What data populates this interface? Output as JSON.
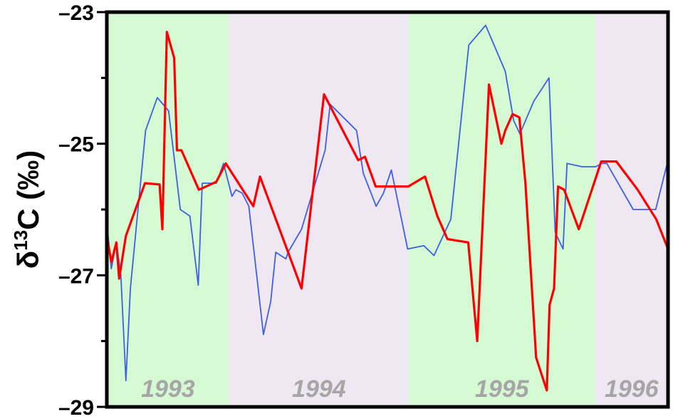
{
  "chart_data": {
    "type": "line",
    "ylabel_base": "δ",
    "ylabel_sup": "13",
    "ylabel_rest": "C (‰)",
    "ylim": [
      -29,
      -23
    ],
    "y_ticks": [
      -23,
      -25,
      -27,
      -29
    ],
    "y_tick_labels": [
      "–23",
      "–25",
      "–27",
      "–29"
    ],
    "xlim": [
      0,
      100
    ],
    "grid": false,
    "legend": "none",
    "year_bands": [
      {
        "label": "1993",
        "start": 0,
        "end": 21.8,
        "color": "#d5f9d3"
      },
      {
        "label": "1994",
        "start": 21.8,
        "end": 53.8,
        "color": "#efe7f2"
      },
      {
        "label": "1995",
        "start": 53.8,
        "end": 87.0,
        "color": "#d5f9d3"
      },
      {
        "label": "1996",
        "start": 87.0,
        "end": 100,
        "color": "#efe7f2"
      }
    ],
    "series": [
      {
        "color": "#ff0000",
        "x": [
          0,
          0.8,
          1.7,
          2.2,
          3.4,
          6.8,
          9.4,
          9.9,
          10.7,
          12.0,
          12.5,
          13.3,
          16.4,
          19.5,
          21.2,
          26.1,
          27.3,
          34.7,
          38.7,
          44.8,
          46.0,
          47.9,
          53.7,
          56.7,
          58.9,
          60.7,
          64.4,
          66.0,
          68.1,
          70.3,
          71.0,
          72.3,
          73.5,
          74.6,
          76.5,
          78.4,
          78.9,
          79.7,
          80.4,
          81.5,
          84.1,
          88.1,
          90.8,
          94.6,
          97.9,
          100
        ],
        "y": [
          -26.4,
          -26.8,
          -26.5,
          -27.05,
          -26.4,
          -25.6,
          -25.62,
          -26.3,
          -23.3,
          -23.7,
          -25.1,
          -25.1,
          -25.7,
          -25.58,
          -25.3,
          -25.95,
          -25.5,
          -27.2,
          -24.25,
          -25.25,
          -25.2,
          -25.65,
          -25.65,
          -25.5,
          -26.1,
          -26.45,
          -26.5,
          -28.0,
          -24.1,
          -25.0,
          -24.8,
          -24.55,
          -24.6,
          -25.6,
          -28.25,
          -28.75,
          -27.45,
          -27.2,
          -25.65,
          -25.7,
          -26.3,
          -25.27,
          -25.27,
          -25.7,
          -26.15,
          -26.6
        ]
      },
      {
        "color": "#3c5fe6",
        "x": [
          0,
          0.8,
          1.7,
          2.5,
          3.4,
          4.2,
          6.9,
          9.0,
          11.0,
          13.1,
          14.8,
          16.3,
          17.0,
          19.5,
          20.8,
          22.3,
          23.0,
          24.1,
          25.3,
          27.9,
          29.2,
          30.1,
          31.9,
          32.3,
          34.7,
          38.9,
          39.8,
          44.5,
          45.7,
          48.0,
          49.3,
          50.7,
          53.6,
          56.5,
          58.3,
          61.3,
          64.5,
          67.5,
          71.0,
          72.5,
          73.6,
          76.1,
          78.8,
          79.9,
          81.3,
          82.0,
          84.7,
          87.1,
          88.2,
          89.1,
          93.8,
          95.1,
          97.8,
          100
        ],
        "y": [
          -26.2,
          -26.9,
          -26.5,
          -27.0,
          -28.6,
          -27.2,
          -24.8,
          -24.3,
          -24.5,
          -26.0,
          -26.1,
          -27.15,
          -25.6,
          -25.6,
          -25.3,
          -25.8,
          -25.7,
          -25.75,
          -25.95,
          -27.9,
          -27.4,
          -26.65,
          -26.75,
          -26.65,
          -26.3,
          -25.1,
          -24.4,
          -24.8,
          -25.45,
          -25.95,
          -25.75,
          -25.4,
          -26.6,
          -26.55,
          -26.7,
          -26.15,
          -23.5,
          -23.2,
          -23.9,
          -24.65,
          -24.85,
          -24.35,
          -24.0,
          -26.35,
          -26.6,
          -25.3,
          -25.35,
          -25.35,
          -25.3,
          -25.3,
          -26.0,
          -26.0,
          -26.0,
          -25.25
        ]
      }
    ]
  }
}
